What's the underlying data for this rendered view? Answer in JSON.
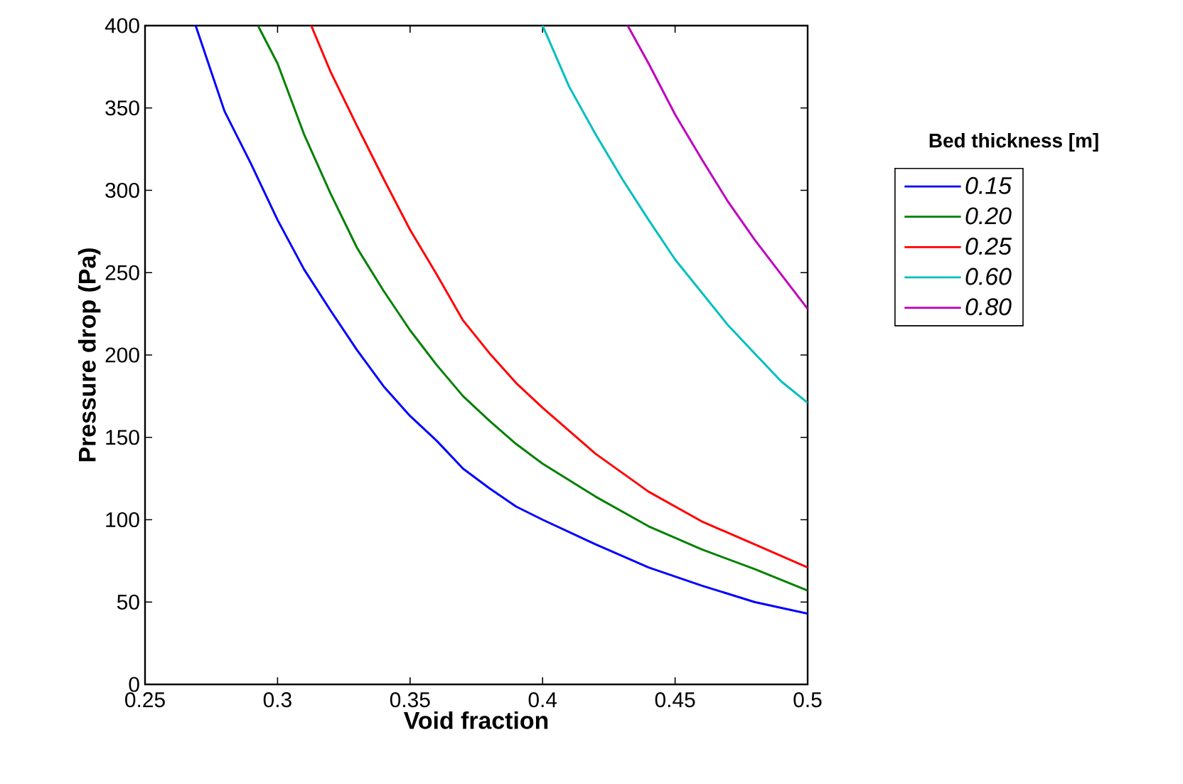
{
  "chart_data": {
    "type": "line",
    "xlabel": "Void fraction",
    "ylabel": "Pressure drop (Pa)",
    "legend_title": "Bed thickness [m]",
    "legend": "right",
    "grid": false,
    "marker": "none",
    "line_style": "solid",
    "xlim": [
      0.25,
      0.5
    ],
    "ylim": [
      0,
      400
    ],
    "xticks": [
      0.25,
      0.3,
      0.35,
      0.4,
      0.45,
      0.5
    ],
    "yticks": [
      0,
      50,
      100,
      150,
      200,
      250,
      300,
      350,
      400
    ],
    "series": [
      {
        "name": "0.15",
        "color": "#0000ff",
        "x": [
          0.2691,
          0.28,
          0.29,
          0.3,
          0.31,
          0.32,
          0.33,
          0.34,
          0.35,
          0.36,
          0.37,
          0.38,
          0.39,
          0.4,
          0.42,
          0.44,
          0.46,
          0.48,
          0.5
        ],
        "values": [
          400,
          348,
          316,
          282,
          252,
          227,
          203,
          181,
          163,
          148,
          131,
          119,
          108,
          100,
          85,
          71,
          60,
          50,
          43
        ]
      },
      {
        "name": "0.20",
        "color": "#008000",
        "x": [
          0.2926,
          0.3,
          0.31,
          0.32,
          0.33,
          0.34,
          0.35,
          0.36,
          0.37,
          0.38,
          0.39,
          0.4,
          0.42,
          0.44,
          0.46,
          0.48,
          0.5
        ],
        "values": [
          400,
          377,
          334,
          298,
          265,
          239,
          215,
          194,
          175,
          160,
          146,
          134,
          114,
          96,
          82,
          70,
          57
        ]
      },
      {
        "name": "0.25",
        "color": "#ff0000",
        "x": [
          0.3127,
          0.32,
          0.33,
          0.34,
          0.35,
          0.36,
          0.37,
          0.38,
          0.39,
          0.4,
          0.42,
          0.44,
          0.46,
          0.48,
          0.5
        ],
        "values": [
          400,
          372,
          339,
          307,
          276,
          249,
          221,
          201,
          183,
          168,
          140,
          117,
          99,
          85,
          71
        ]
      },
      {
        "name": "0.60",
        "color": "#00bfbf",
        "x": [
          0.4,
          0.41,
          0.42,
          0.43,
          0.44,
          0.45,
          0.46,
          0.47,
          0.48,
          0.49,
          0.5
        ],
        "values": [
          400,
          363,
          334,
          307,
          282,
          258,
          238,
          218,
          201,
          184,
          171
        ]
      },
      {
        "name": "0.80",
        "color": "#bf00bf",
        "x": [
          0.4321,
          0.44,
          0.45,
          0.46,
          0.47,
          0.48,
          0.49,
          0.5
        ],
        "values": [
          400,
          377,
          346,
          319,
          293,
          270,
          249,
          228
        ]
      }
    ]
  }
}
